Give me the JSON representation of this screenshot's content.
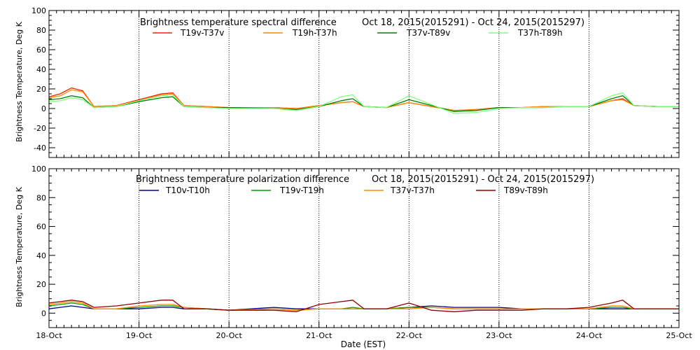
{
  "chart_data": [
    {
      "type": "line",
      "title": "Brightness temperature spectral difference",
      "date_range": "Oct 18, 2015(2015291) - Oct 24, 2015(2015297)",
      "ylabel": "Brightness Temperature, Deg K",
      "xlabel": "",
      "xlim": [
        "2015-10-18T00:00",
        "2015-10-25T00:00"
      ],
      "ylim": [
        -50,
        100
      ],
      "yticks": [
        -40,
        -20,
        0,
        20,
        40,
        60,
        80,
        100
      ],
      "grid": "dotted vertical lines at each day",
      "legend_position": "top, single row",
      "series": [
        {
          "name": "T19v-T37v",
          "color": "#ff2000",
          "x": [
            "2015-10-18T00:00",
            "2015-10-18T03:00",
            "2015-10-18T06:00",
            "2015-10-18T09:00",
            "2015-10-18T12:00",
            "2015-10-18T18:00",
            "2015-10-19T00:00",
            "2015-10-19T06:00",
            "2015-10-19T09:00",
            "2015-10-19T12:00",
            "2015-10-19T18:00",
            "2015-10-20T00:00",
            "2015-10-20T12:00",
            "2015-10-20T18:00",
            "2015-10-21T00:00",
            "2015-10-21T06:00",
            "2015-10-21T09:00",
            "2015-10-21T12:00",
            "2015-10-21T18:00",
            "2015-10-22T00:00",
            "2015-10-22T06:00",
            "2015-10-22T12:00",
            "2015-10-22T18:00",
            "2015-10-23T00:00",
            "2015-10-23T06:00",
            "2015-10-23T12:00",
            "2015-10-23T18:00",
            "2015-10-24T00:00",
            "2015-10-24T06:00",
            "2015-10-24T09:00",
            "2015-10-24T12:00",
            "2015-10-24T18:00",
            "2015-10-25T00:00"
          ],
          "y": [
            12,
            15,
            21,
            18,
            2,
            3,
            9,
            15,
            16,
            3,
            2,
            1,
            1,
            0,
            3,
            6,
            7,
            2,
            1,
            6,
            2,
            -2,
            -1,
            1,
            1,
            2,
            2,
            2,
            8,
            10,
            3,
            2,
            2
          ]
        },
        {
          "name": "T19h-T37h",
          "color": "#ff8c00",
          "x": [
            "2015-10-18T00:00",
            "2015-10-18T03:00",
            "2015-10-18T06:00",
            "2015-10-18T09:00",
            "2015-10-18T12:00",
            "2015-10-18T18:00",
            "2015-10-19T00:00",
            "2015-10-19T06:00",
            "2015-10-19T09:00",
            "2015-10-19T12:00",
            "2015-10-19T18:00",
            "2015-10-20T00:00",
            "2015-10-20T12:00",
            "2015-10-20T18:00",
            "2015-10-21T00:00",
            "2015-10-21T06:00",
            "2015-10-21T09:00",
            "2015-10-21T12:00",
            "2015-10-21T18:00",
            "2015-10-22T00:00",
            "2015-10-22T06:00",
            "2015-10-22T12:00",
            "2015-10-22T18:00",
            "2015-10-23T00:00",
            "2015-10-23T06:00",
            "2015-10-23T12:00",
            "2015-10-23T18:00",
            "2015-10-24T00:00",
            "2015-10-24T06:00",
            "2015-10-24T09:00",
            "2015-10-24T12:00",
            "2015-10-24T18:00",
            "2015-10-25T00:00"
          ],
          "y": [
            11,
            13,
            19,
            17,
            2,
            3,
            8,
            14,
            15,
            3,
            2,
            1,
            1,
            0,
            3,
            6,
            7,
            2,
            1,
            6,
            2,
            -2,
            -1,
            1,
            1,
            2,
            2,
            2,
            8,
            9,
            3,
            2,
            2
          ]
        },
        {
          "name": "T37v-T89v",
          "color": "#008000",
          "x": [
            "2015-10-18T00:00",
            "2015-10-18T03:00",
            "2015-10-18T06:00",
            "2015-10-18T09:00",
            "2015-10-18T12:00",
            "2015-10-18T18:00",
            "2015-10-19T00:00",
            "2015-10-19T06:00",
            "2015-10-19T09:00",
            "2015-10-19T12:00",
            "2015-10-19T18:00",
            "2015-10-20T00:00",
            "2015-10-20T12:00",
            "2015-10-20T18:00",
            "2015-10-21T00:00",
            "2015-10-21T06:00",
            "2015-10-21T09:00",
            "2015-10-21T12:00",
            "2015-10-21T18:00",
            "2015-10-22T00:00",
            "2015-10-22T06:00",
            "2015-10-22T12:00",
            "2015-10-22T18:00",
            "2015-10-23T00:00",
            "2015-10-23T06:00",
            "2015-10-23T12:00",
            "2015-10-23T18:00",
            "2015-10-24T00:00",
            "2015-10-24T06:00",
            "2015-10-24T09:00",
            "2015-10-24T12:00",
            "2015-10-24T18:00",
            "2015-10-25T00:00"
          ],
          "y": [
            9,
            10,
            13,
            11,
            1,
            2,
            7,
            11,
            12,
            2,
            1,
            1,
            0,
            -1,
            2,
            8,
            10,
            2,
            1,
            9,
            3,
            -3,
            -2,
            1,
            1,
            1,
            2,
            2,
            10,
            13,
            3,
            2,
            2
          ]
        },
        {
          "name": "T37h-T89h",
          "color": "#7fff7f",
          "x": [
            "2015-10-18T00:00",
            "2015-10-18T03:00",
            "2015-10-18T06:00",
            "2015-10-18T09:00",
            "2015-10-18T12:00",
            "2015-10-18T18:00",
            "2015-10-19T00:00",
            "2015-10-19T06:00",
            "2015-10-19T09:00",
            "2015-10-19T12:00",
            "2015-10-19T18:00",
            "2015-10-20T00:00",
            "2015-10-20T12:00",
            "2015-10-20T18:00",
            "2015-10-21T00:00",
            "2015-10-21T06:00",
            "2015-10-21T09:00",
            "2015-10-21T12:00",
            "2015-10-21T18:00",
            "2015-10-22T00:00",
            "2015-10-22T06:00",
            "2015-10-22T12:00",
            "2015-10-22T18:00",
            "2015-10-23T00:00",
            "2015-10-23T06:00",
            "2015-10-23T12:00",
            "2015-10-23T18:00",
            "2015-10-24T00:00",
            "2015-10-24T06:00",
            "2015-10-24T09:00",
            "2015-10-24T12:00",
            "2015-10-24T18:00",
            "2015-10-25T00:00"
          ],
          "y": [
            7,
            8,
            11,
            9,
            1,
            2,
            8,
            13,
            14,
            2,
            1,
            0,
            0,
            -2,
            2,
            12,
            14,
            2,
            1,
            13,
            4,
            -5,
            -4,
            0,
            1,
            1,
            2,
            2,
            13,
            16,
            3,
            2,
            2
          ]
        }
      ]
    },
    {
      "type": "line",
      "title": "Brightness temperature polarization difference",
      "date_range": "Oct 18, 2015(2015291) - Oct 24, 2015(2015297)",
      "ylabel": "Brightness Temperature, Deg K",
      "xlabel": "Date (EST)",
      "xlim": [
        "2015-10-18T00:00",
        "2015-10-25T00:00"
      ],
      "ylim": [
        -10,
        100
      ],
      "yticks": [
        0,
        20,
        40,
        60,
        80,
        100
      ],
      "xticks": [
        "18-Oct",
        "19-Oct",
        "20-Oct",
        "21-Oct",
        "22-Oct",
        "23-Oct",
        "24-Oct",
        "25-Oct"
      ],
      "grid": "dotted vertical lines at each day",
      "legend_position": "top, single row",
      "series": [
        {
          "name": "T10v-T10h",
          "color": "#000090",
          "x": [
            "2015-10-18T00:00",
            "2015-10-18T03:00",
            "2015-10-18T06:00",
            "2015-10-18T09:00",
            "2015-10-18T12:00",
            "2015-10-18T18:00",
            "2015-10-19T00:00",
            "2015-10-19T06:00",
            "2015-10-19T09:00",
            "2015-10-19T12:00",
            "2015-10-19T18:00",
            "2015-10-20T00:00",
            "2015-10-20T12:00",
            "2015-10-20T18:00",
            "2015-10-21T00:00",
            "2015-10-21T06:00",
            "2015-10-21T09:00",
            "2015-10-21T12:00",
            "2015-10-21T18:00",
            "2015-10-22T00:00",
            "2015-10-22T06:00",
            "2015-10-22T12:00",
            "2015-10-22T18:00",
            "2015-10-23T00:00",
            "2015-10-23T06:00",
            "2015-10-23T12:00",
            "2015-10-23T18:00",
            "2015-10-24T00:00",
            "2015-10-24T06:00",
            "2015-10-24T09:00",
            "2015-10-24T12:00",
            "2015-10-24T18:00",
            "2015-10-25T00:00"
          ],
          "y": [
            3,
            4,
            5,
            4,
            3,
            3,
            3,
            4,
            4,
            3,
            3,
            2,
            4,
            3,
            3,
            3,
            3,
            3,
            3,
            4,
            5,
            4,
            4,
            4,
            3,
            3,
            3,
            3,
            3,
            3,
            3,
            3,
            3
          ]
        },
        {
          "name": "T19v-T19h",
          "color": "#00a000",
          "x": [
            "2015-10-18T00:00",
            "2015-10-18T03:00",
            "2015-10-18T06:00",
            "2015-10-18T09:00",
            "2015-10-18T12:00",
            "2015-10-18T18:00",
            "2015-10-19T00:00",
            "2015-10-19T06:00",
            "2015-10-19T09:00",
            "2015-10-19T12:00",
            "2015-10-19T18:00",
            "2015-10-20T00:00",
            "2015-10-20T12:00",
            "2015-10-20T18:00",
            "2015-10-21T00:00",
            "2015-10-21T06:00",
            "2015-10-21T09:00",
            "2015-10-21T12:00",
            "2015-10-21T18:00",
            "2015-10-22T00:00",
            "2015-10-22T06:00",
            "2015-10-22T12:00",
            "2015-10-22T18:00",
            "2015-10-23T00:00",
            "2015-10-23T06:00",
            "2015-10-23T12:00",
            "2015-10-23T18:00",
            "2015-10-24T00:00",
            "2015-10-24T06:00",
            "2015-10-24T09:00",
            "2015-10-24T12:00",
            "2015-10-24T18:00",
            "2015-10-25T00:00"
          ],
          "y": [
            5,
            6,
            7,
            6,
            3,
            3,
            4,
            5,
            5,
            4,
            3,
            2,
            3,
            2,
            3,
            3,
            4,
            3,
            3,
            4,
            4,
            3,
            3,
            3,
            3,
            3,
            3,
            3,
            4,
            4,
            3,
            3,
            3
          ]
        },
        {
          "name": "T37v-T37h",
          "color": "#ff8c00",
          "x": [
            "2015-10-18T00:00",
            "2015-10-18T03:00",
            "2015-10-18T06:00",
            "2015-10-18T09:00",
            "2015-10-18T12:00",
            "2015-10-18T18:00",
            "2015-10-19T00:00",
            "2015-10-19T06:00",
            "2015-10-19T09:00",
            "2015-10-19T12:00",
            "2015-10-19T18:00",
            "2015-10-20T00:00",
            "2015-10-20T12:00",
            "2015-10-20T18:00",
            "2015-10-21T00:00",
            "2015-10-21T06:00",
            "2015-10-21T09:00",
            "2015-10-21T12:00",
            "2015-10-21T18:00",
            "2015-10-22T00:00",
            "2015-10-22T06:00",
            "2015-10-22T12:00",
            "2015-10-22T18:00",
            "2015-10-23T00:00",
            "2015-10-23T06:00",
            "2015-10-23T12:00",
            "2015-10-23T18:00",
            "2015-10-24T00:00",
            "2015-10-24T06:00",
            "2015-10-24T09:00",
            "2015-10-24T12:00",
            "2015-10-24T18:00",
            "2015-10-25T00:00"
          ],
          "y": [
            6,
            7,
            8,
            7,
            3,
            3,
            5,
            6,
            6,
            4,
            3,
            2,
            3,
            2,
            3,
            3,
            3,
            3,
            3,
            3,
            4,
            3,
            3,
            3,
            3,
            3,
            3,
            3,
            5,
            5,
            3,
            3,
            3
          ]
        },
        {
          "name": "T89v-T89h",
          "color": "#900000",
          "x": [
            "2015-10-18T00:00",
            "2015-10-18T03:00",
            "2015-10-18T06:00",
            "2015-10-18T09:00",
            "2015-10-18T12:00",
            "2015-10-18T18:00",
            "2015-10-19T00:00",
            "2015-10-19T06:00",
            "2015-10-19T09:00",
            "2015-10-19T12:00",
            "2015-10-19T18:00",
            "2015-10-20T00:00",
            "2015-10-20T12:00",
            "2015-10-20T18:00",
            "2015-10-21T00:00",
            "2015-10-21T06:00",
            "2015-10-21T09:00",
            "2015-10-21T12:00",
            "2015-10-21T18:00",
            "2015-10-22T00:00",
            "2015-10-22T06:00",
            "2015-10-22T12:00",
            "2015-10-22T18:00",
            "2015-10-23T00:00",
            "2015-10-23T06:00",
            "2015-10-23T12:00",
            "2015-10-23T18:00",
            "2015-10-24T00:00",
            "2015-10-24T06:00",
            "2015-10-24T09:00",
            "2015-10-24T12:00",
            "2015-10-24T18:00",
            "2015-10-25T00:00"
          ],
          "y": [
            7,
            8,
            9,
            8,
            4,
            5,
            7,
            9,
            9,
            3,
            3,
            2,
            2,
            1,
            6,
            8,
            9,
            3,
            3,
            7,
            2,
            1,
            2,
            2,
            2,
            3,
            3,
            4,
            7,
            9,
            3,
            3,
            3
          ]
        }
      ]
    }
  ]
}
